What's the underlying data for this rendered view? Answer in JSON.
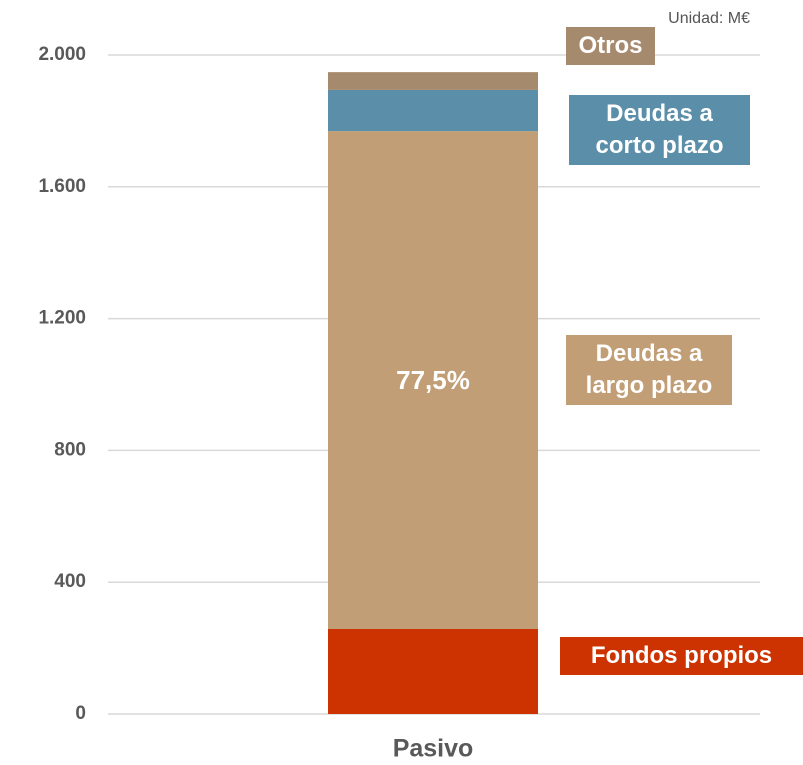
{
  "chart_data": {
    "type": "stacked_bar",
    "unit_label": "Unidad: M€",
    "categories": [
      "Pasivo"
    ],
    "series": [
      {
        "name": "Fondos propios",
        "color": "#cc3300",
        "values": [
          258
        ]
      },
      {
        "name": "Deudas a largo plazo",
        "color": "#c19e75",
        "values": [
          1511
        ]
      },
      {
        "name": "Deudas a corto plazo",
        "color": "#5b8fa9",
        "values": [
          125
        ]
      },
      {
        "name": "Otros",
        "color": "#a68a6e",
        "values": [
          54
        ]
      }
    ],
    "annotation": "77,5%",
    "ylim": [
      0,
      2000
    ],
    "yticks": [
      0,
      400,
      800,
      {
        "value": 1200,
        "label": "1.200"
      },
      {
        "value": 1600,
        "label": "1.600"
      },
      {
        "value": 2000,
        "label": "2.000"
      }
    ],
    "grid": true
  }
}
